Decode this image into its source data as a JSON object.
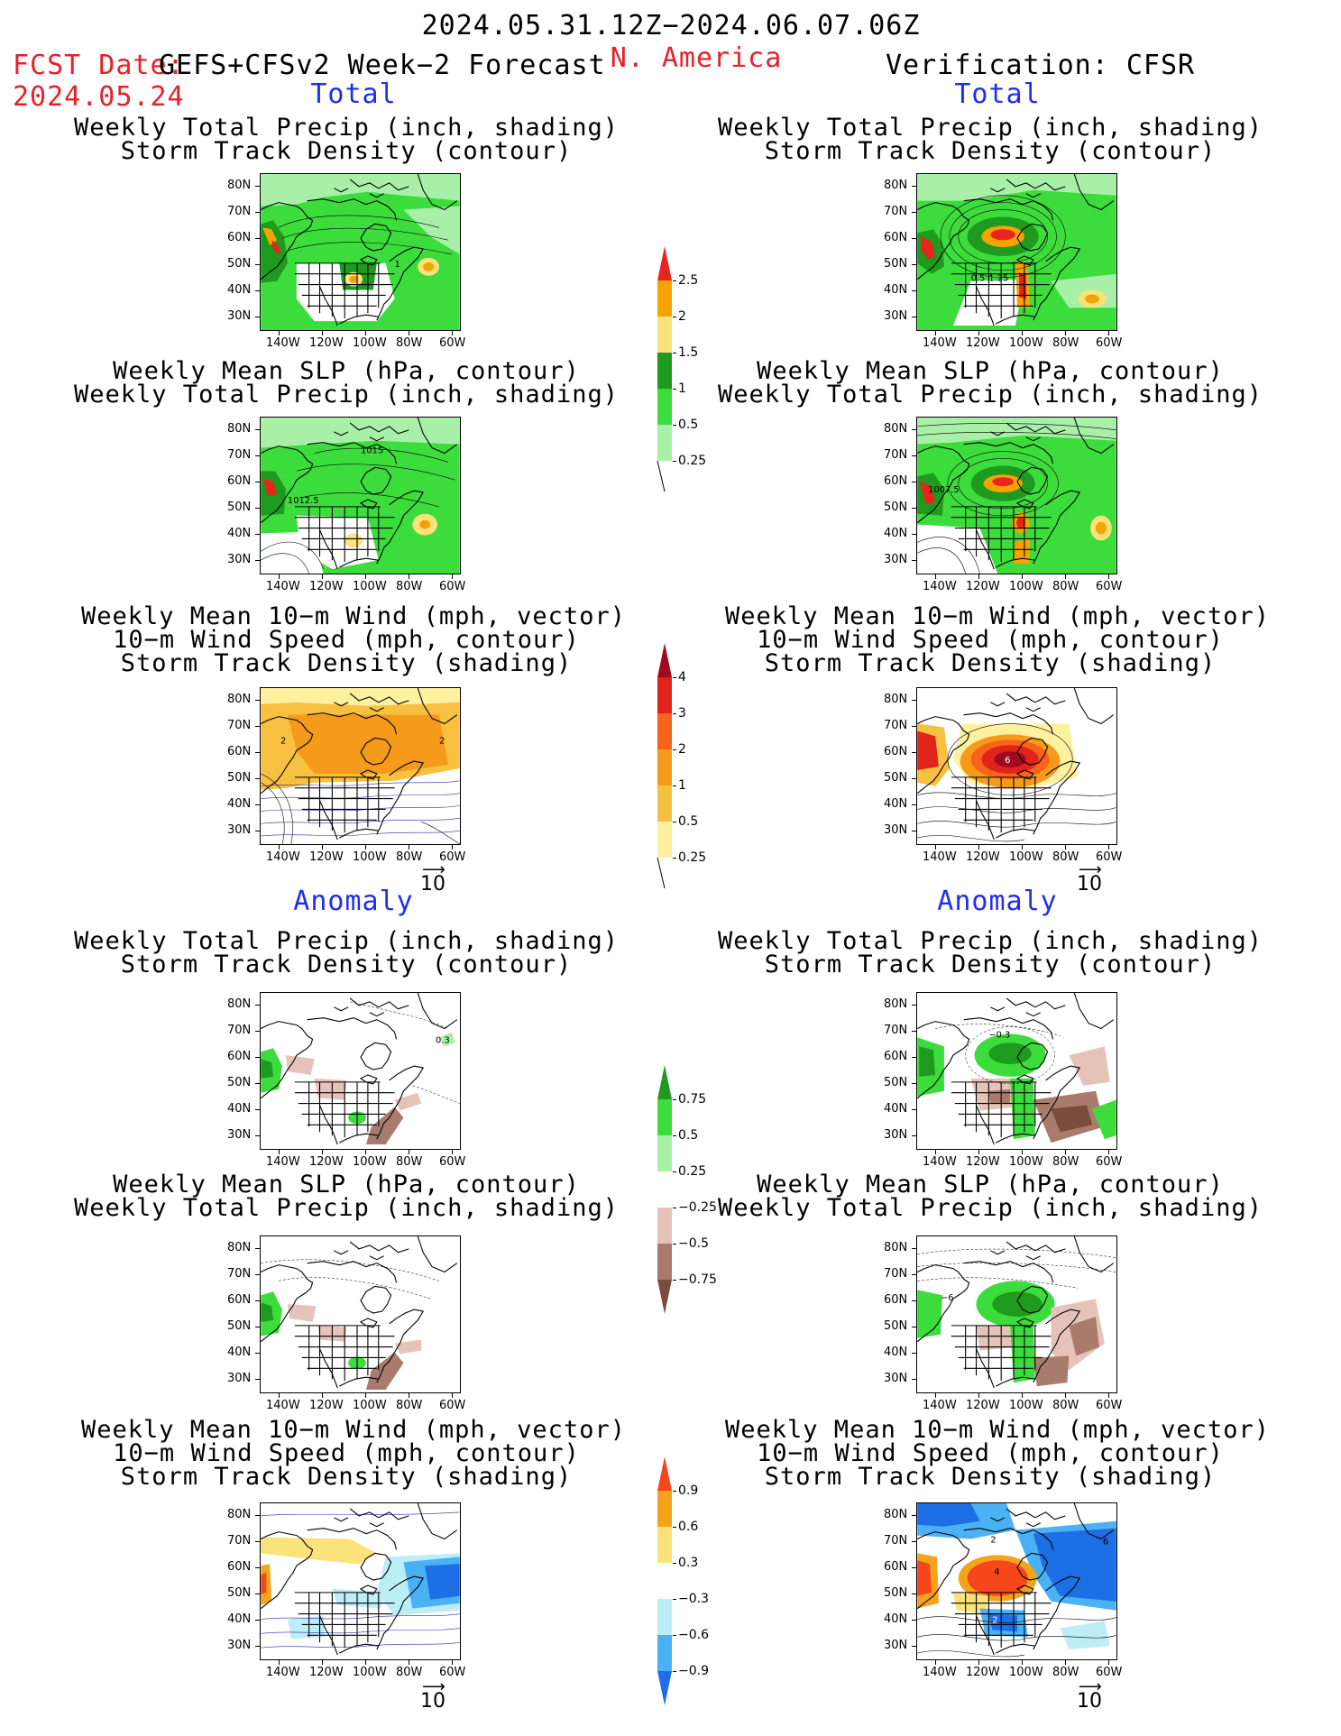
{
  "header": {
    "period": "2024.05.31.12Z−2024.06.07.06Z",
    "fcst_label": "FCST Date:",
    "fcst_model": "GEFS+CFSv2 Week−2 Forecast",
    "fcst_date": "2024.05.24",
    "region": "N. America",
    "verification": "Verification: CFSR"
  },
  "sections": {
    "total": "Total",
    "anomaly": "Anomaly"
  },
  "titles": {
    "precip_std": [
      "Weekly Total Precip (inch, shading)",
      "Storm Track Density (contour)"
    ],
    "slp_precip": [
      "Weekly Mean SLP (hPa, contour)",
      "Weekly Total Precip (inch, shading)"
    ],
    "wind_std": [
      "Weekly Mean 10−m Wind (mph, vector)",
      "10−m Wind Speed (mph, contour)",
      "Storm Track Density (shading)"
    ]
  },
  "axes": {
    "lat_ticks": [
      "80N",
      "70N",
      "60N",
      "50N",
      "40N",
      "30N"
    ],
    "lon_ticks": [
      "140W",
      "120W",
      "100W",
      "80W",
      "60W"
    ]
  },
  "vector_scale": "10",
  "colorbars": {
    "precip_total": {
      "labels": [
        "2.5",
        "2",
        "1.5",
        "1",
        "0.5",
        "0.25"
      ],
      "colors": [
        "#e8241c",
        "#f5a300",
        "#fbe27a",
        "#1e9a1e",
        "#3ddc3d",
        "#a8f0a8"
      ]
    },
    "std_total": {
      "labels": [
        "4",
        "3",
        "2",
        "1",
        "0.5",
        "0.25"
      ],
      "colors": [
        "#a00a1e",
        "#e0241c",
        "#f5641a",
        "#f59a1a",
        "#f8c040",
        "#fdf1a0"
      ]
    },
    "precip_anom": {
      "labels": [
        "0.75",
        "0.5",
        "0.25",
        "−0.25",
        "−0.5",
        "−0.75"
      ],
      "colors": [
        "#1e9a1e",
        "#3ddc3d",
        "#a8f0a8",
        "#ffffff",
        "#e6c3b9",
        "#a87b6c",
        "#7a4c3c"
      ]
    },
    "std_anom": {
      "labels": [
        "0.9",
        "0.6",
        "0.3",
        "−0.3",
        "−0.6",
        "−0.9"
      ],
      "colors": [
        "#f5461c",
        "#f5a31a",
        "#fbe27a",
        "#ffffff",
        "#bdeef8",
        "#4ab2f4",
        "#1e6ee6"
      ]
    }
  },
  "map_labels": {
    "p1l": "1",
    "p1r": "0.5",
    "p1r2": "1.25",
    "p2l": "1015",
    "p2l2": "1012.5",
    "p2r": "1007.5",
    "p3l": "2",
    "p3l2": "2",
    "p3r": "6",
    "p4l": "0.3",
    "p4r": "−0.3",
    "p5r": "−6",
    "p6r": "2",
    "p6r2": "4",
    "p6r3": "2",
    "p6r4": "6"
  }
}
